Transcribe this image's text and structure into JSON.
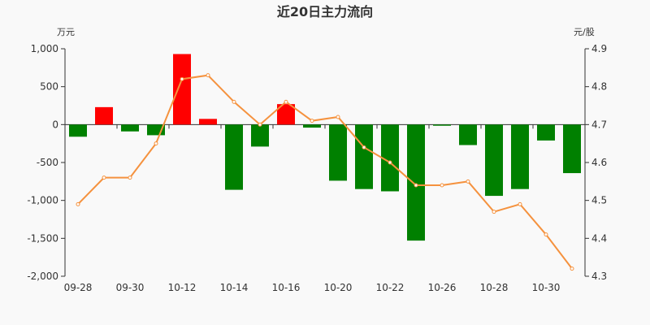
{
  "chart_data": {
    "type": "bar+line",
    "title": "近20日主力流向",
    "left_axis": {
      "unit": "万元",
      "ylim": [
        -2000,
        1000
      ],
      "ticks": [
        1000,
        500,
        0,
        -500,
        -1000,
        -1500,
        -2000
      ],
      "tick_labels": [
        "1,000",
        "500",
        "0",
        "-500",
        "-1,000",
        "-1,500",
        "-2,000"
      ]
    },
    "right_axis": {
      "unit": "元/股",
      "ylim": [
        4.3,
        4.9
      ],
      "ticks": [
        4.9,
        4.8,
        4.7,
        4.6,
        4.5,
        4.4,
        4.3
      ],
      "tick_labels": [
        "4.9",
        "4.8",
        "4.7",
        "4.6",
        "4.5",
        "4.4",
        "4.3"
      ]
    },
    "x_tick_labels": [
      "09-28",
      "09-30",
      "10-12",
      "10-14",
      "10-16",
      "10-20",
      "10-22",
      "10-26",
      "10-28",
      "10-30"
    ],
    "x_tick_label_index": [
      0,
      2,
      4,
      6,
      8,
      10,
      12,
      14,
      16,
      18
    ],
    "bar_series": {
      "values": [
        -160,
        230,
        -90,
        -140,
        930,
        75,
        -860,
        -290,
        270,
        -40,
        -740,
        -850,
        -880,
        -1530,
        -15,
        -270,
        -940,
        -850,
        -210,
        -640
      ],
      "positive_color": "#ff0000",
      "negative_color": "#008000"
    },
    "line_series": {
      "values": [
        4.49,
        4.56,
        4.56,
        4.65,
        4.82,
        4.83,
        4.76,
        4.7,
        4.76,
        4.71,
        4.72,
        4.64,
        4.6,
        4.54,
        4.54,
        4.55,
        4.47,
        4.49,
        4.41,
        4.32
      ],
      "color": "#f5923e"
    },
    "n_points": 20,
    "grid": false
  }
}
